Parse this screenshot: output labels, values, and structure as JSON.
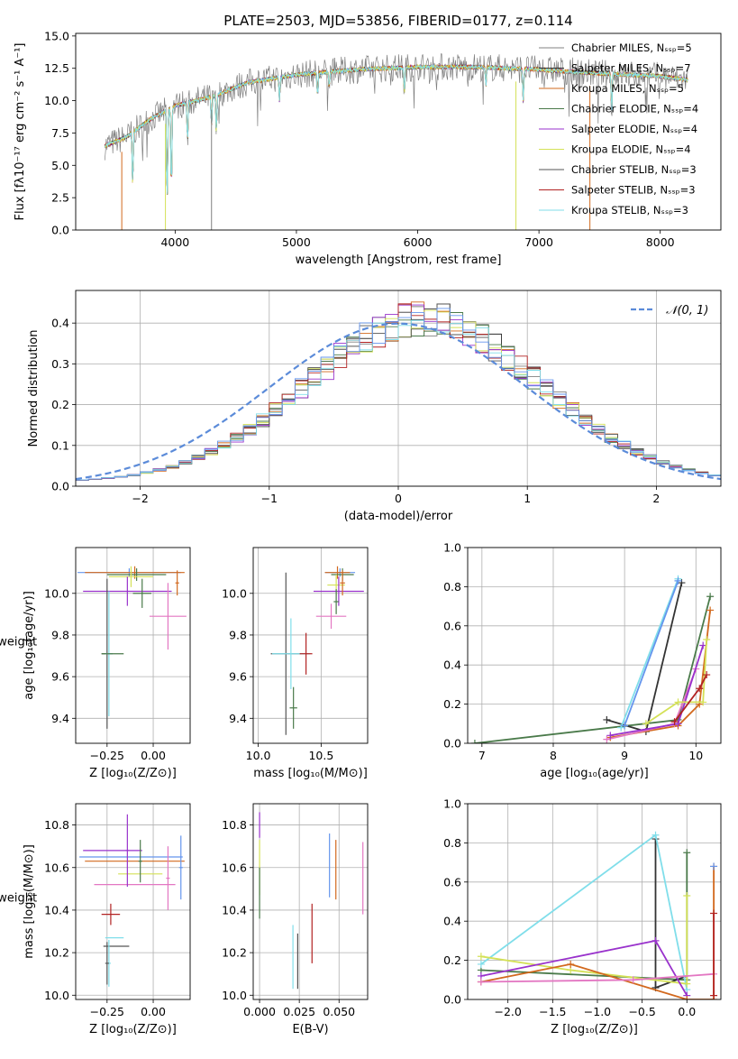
{
  "chart_data": [
    {
      "id": "spectrum",
      "type": "line",
      "title": "PLATE=2503, MJD=53856, FIBERID=0177, z=0.114",
      "xlabel": "wavelength [Angstrom, rest frame]",
      "ylabel": "Flux [fλ10⁻¹⁷ erg cm⁻² s⁻¹ A⁻¹]",
      "xlim": [
        3180,
        8500
      ],
      "ylim": [
        0,
        15.2
      ],
      "xticks": [
        "4000",
        "5000",
        "6000",
        "7000",
        "8000"
      ],
      "yticks": [
        "0.0",
        "2.5",
        "5.0",
        "7.5",
        "10.0",
        "12.5",
        "15.0"
      ],
      "legend_position": "upper-right",
      "series": [
        {
          "name": "Chabrier MILES, N_SSP=5",
          "color": "#808080"
        },
        {
          "name": "Salpeter MILES, N_SSP=7",
          "color": "#333333"
        },
        {
          "name": "Kroupa MILES, N_SSP=5",
          "color": "#d2691e"
        },
        {
          "name": "Chabrier ELODIE, N_SSP=4",
          "color": "#4a7a4a"
        },
        {
          "name": "Salpeter ELODIE, N_SSP=4",
          "color": "#9932cc"
        },
        {
          "name": "Kroupa ELODIE, N_SSP=4",
          "color": "#d4e157"
        },
        {
          "name": "Chabrier STELIB, N_SSP=3",
          "color": "#555555"
        },
        {
          "name": "Salpeter STELIB, N_SSP=3",
          "color": "#b22222"
        },
        {
          "name": "Kroupa STELIB, N_SSP=3",
          "color": "#80deea"
        }
      ],
      "continuum": [
        [
          3420,
          6.5
        ],
        [
          3600,
          7.2
        ],
        [
          3800,
          8.6
        ],
        [
          4000,
          9.6
        ],
        [
          4300,
          10.3
        ],
        [
          4600,
          11.4
        ],
        [
          5000,
          12.0
        ],
        [
          5500,
          12.4
        ],
        [
          6000,
          12.6
        ],
        [
          6500,
          12.6
        ],
        [
          7000,
          12.4
        ],
        [
          7500,
          12.1
        ],
        [
          8000,
          11.9
        ],
        [
          8230,
          11.6
        ]
      ],
      "absorption_lines": [
        [
          3650,
          4.2
        ],
        [
          3934,
          7.2
        ],
        [
          3969,
          6.6
        ],
        [
          4102,
          3.0
        ],
        [
          4300,
          2.3
        ],
        [
          4340,
          3.0
        ],
        [
          4861,
          1.8
        ],
        [
          5175,
          1.8
        ],
        [
          5270,
          1.2
        ],
        [
          5890,
          2.0
        ],
        [
          6563,
          1.4
        ],
        [
          6870,
          2.5
        ],
        [
          7600,
          3.0
        ]
      ]
    },
    {
      "id": "residuals",
      "type": "step",
      "xlabel": "(data-model)/error",
      "ylabel": "Normed distribution",
      "xlim": [
        -2.5,
        2.5
      ],
      "ylim": [
        0,
        0.48
      ],
      "xticks": [
        "−2",
        "−1",
        "0",
        "1",
        "2"
      ],
      "yticks": [
        "0.0",
        "0.1",
        "0.2",
        "0.3",
        "0.4"
      ],
      "legend": "𝒩(0, 1)",
      "normal_curve": {
        "mean": 0,
        "sigma": 1
      },
      "hist_colors": [
        "#808080",
        "#333333",
        "#d2691e",
        "#4a7a4a",
        "#9932cc",
        "#d4e157",
        "#555555",
        "#b22222",
        "#80deea",
        "#6495ed"
      ]
    },
    {
      "id": "age_vs_Z",
      "type": "errorbar",
      "xlabel": "Z [log₁₀(Z/Z⊙)]",
      "ylabel": "age  [log₁₀(age/yr)]",
      "xlim": [
        -0.42,
        0.2
      ],
      "ylim": [
        9.28,
        10.22
      ],
      "xticks": [
        "−0.25",
        "0.00"
      ],
      "yticks": [
        "9.4",
        "9.6",
        "9.8",
        "10.0"
      ],
      "points": [
        {
          "x": -0.13,
          "xe": 0.28,
          "y": 10.1,
          "ye": 0.02,
          "c": "#6495ed"
        },
        {
          "x": -0.1,
          "xe": 0.27,
          "y": 10.1,
          "ye": 0.03,
          "c": "#d2691e"
        },
        {
          "x": -0.09,
          "xe": 0.16,
          "y": 10.09,
          "ye": 0.03,
          "c": "#4a7a4a"
        },
        {
          "x": -0.12,
          "xe": 0.12,
          "y": 10.08,
          "ye": 0.05,
          "c": "#d4e157"
        },
        {
          "x": -0.14,
          "xe": 0.24,
          "y": 10.01,
          "ye": 0.07,
          "c": "#9932cc"
        },
        {
          "x": 0.13,
          "xe": 0.01,
          "y": 10.05,
          "ye": 0.06,
          "c": "#d2691e"
        },
        {
          "x": 0.08,
          "xe": 0.1,
          "y": 9.89,
          "ye": 0.16,
          "c": "#e377c2"
        },
        {
          "x": -0.06,
          "xe": 0.05,
          "y": 10.0,
          "ye": 0.07,
          "c": "#4a7a4a"
        },
        {
          "x": -0.25,
          "xe": 0.03,
          "y": 9.71,
          "ye": 0.36,
          "c": "#555555"
        },
        {
          "x": -0.24,
          "xe": 0.02,
          "y": 9.71,
          "ye": 0.3,
          "c": "#80deea"
        },
        {
          "x": -0.22,
          "xe": 0.06,
          "y": 9.71,
          "ye": 0.0,
          "c": "#4a7a4a"
        }
      ]
    },
    {
      "id": "age_vs_mass",
      "type": "errorbar",
      "xlabel": "mass [log₁₀(M/M⊙)]",
      "ylabel": "",
      "xlim": [
        9.96,
        10.87
      ],
      "ylim": [
        9.28,
        10.22
      ],
      "xticks": [
        "10.0",
        "10.5"
      ],
      "yticks": [
        "9.4",
        "9.6",
        "9.8",
        "10.0"
      ],
      "points": [
        {
          "x": 10.65,
          "xe": 0.12,
          "y": 10.1,
          "ye": 0.02,
          "c": "#6495ed"
        },
        {
          "x": 10.63,
          "xe": 0.1,
          "y": 10.1,
          "ye": 0.03,
          "c": "#d2691e"
        },
        {
          "x": 10.67,
          "xe": 0.09,
          "y": 10.09,
          "ye": 0.03,
          "c": "#4a7a4a"
        },
        {
          "x": 10.62,
          "xe": 0.07,
          "y": 10.04,
          "ye": 0.05,
          "c": "#d4e157"
        },
        {
          "x": 10.64,
          "xe": 0.2,
          "y": 10.01,
          "ye": 0.07,
          "c": "#9932cc"
        },
        {
          "x": 10.58,
          "xe": 0.12,
          "y": 9.89,
          "ye": 0.06,
          "c": "#e377c2"
        },
        {
          "x": 10.67,
          "xe": 0.02,
          "y": 10.05,
          "ye": 0.06,
          "c": "#d2691e"
        },
        {
          "x": 10.62,
          "xe": 0.02,
          "y": 9.96,
          "ye": 0.06,
          "c": "#4a7a4a"
        },
        {
          "x": 10.22,
          "xe": 0.12,
          "y": 9.71,
          "ye": 0.39,
          "c": "#555555"
        },
        {
          "x": 10.26,
          "xe": 0.15,
          "y": 9.71,
          "ye": 0.17,
          "c": "#80deea"
        },
        {
          "x": 10.38,
          "xe": 0.05,
          "y": 9.71,
          "ye": 0.1,
          "c": "#b22222"
        },
        {
          "x": 10.28,
          "xe": 0.03,
          "y": 9.45,
          "ye": 0.1,
          "c": "#4a7a4a"
        }
      ]
    },
    {
      "id": "mw_vs_age",
      "type": "line",
      "xlabel": "age  [log₁₀(age/yr)]",
      "ylabel": "mass weight",
      "xlim": [
        6.8,
        10.35
      ],
      "ylim": [
        0,
        1.0
      ],
      "xticks": [
        "7",
        "8",
        "9",
        "10"
      ],
      "yticks": [
        "0.0",
        "0.2",
        "0.4",
        "0.6",
        "0.8",
        "1.0"
      ],
      "series": [
        {
          "c": "#4a7a4a",
          "x": [
            6.9,
            9.75,
            10.2
          ],
          "y": [
            0.0,
            0.12,
            0.75
          ]
        },
        {
          "c": "#333333",
          "x": [
            8.75,
            9.3,
            9.8
          ],
          "y": [
            0.12,
            0.06,
            0.82
          ]
        },
        {
          "c": "#80deea",
          "x": [
            8.95,
            9.75
          ],
          "y": [
            0.08,
            0.84
          ]
        },
        {
          "c": "#6495ed",
          "x": [
            9.0,
            9.75
          ],
          "y": [
            0.09,
            0.83
          ]
        },
        {
          "c": "#d2691e",
          "x": [
            8.8,
            9.75,
            10.05,
            10.2
          ],
          "y": [
            0.03,
            0.09,
            0.2,
            0.68
          ]
        },
        {
          "c": "#e377c2",
          "x": [
            8.75,
            9.7,
            10.0
          ],
          "y": [
            0.02,
            0.1,
            0.38
          ]
        },
        {
          "c": "#9932cc",
          "x": [
            8.8,
            9.75,
            10.1
          ],
          "y": [
            0.04,
            0.1,
            0.5
          ]
        },
        {
          "c": "#d4e157",
          "x": [
            9.3,
            9.75,
            10.1,
            10.15
          ],
          "y": [
            0.1,
            0.21,
            0.21,
            0.53
          ]
        },
        {
          "c": "#b22222",
          "x": [
            9.7,
            10.05,
            10.15
          ],
          "y": [
            0.11,
            0.28,
            0.35
          ]
        }
      ]
    },
    {
      "id": "mass_vs_Z",
      "type": "errorbar",
      "xlabel": "Z [log₁₀(Z/Z⊙)]",
      "ylabel": "mass [log₁₀(M/M⊙)]",
      "xlim": [
        -0.42,
        0.2
      ],
      "ylim": [
        9.98,
        10.9
      ],
      "xticks": [
        "−0.25",
        "0.00"
      ],
      "yticks": [
        "10.0",
        "10.2",
        "10.4",
        "10.6",
        "10.8"
      ],
      "points": [
        {
          "x": -0.22,
          "xe": 0.16,
          "y": 10.68,
          "ye": 0.0,
          "c": "#9932cc"
        },
        {
          "x": -0.12,
          "xe": 0.28,
          "y": 10.65,
          "ye": 0.0,
          "c": "#6495ed"
        },
        {
          "x": -0.1,
          "xe": 0.27,
          "y": 10.63,
          "ye": 0.0,
          "c": "#d2691e"
        },
        {
          "x": -0.07,
          "xe": 0.12,
          "y": 10.57,
          "ye": 0.0,
          "c": "#d4e157"
        },
        {
          "x": -0.1,
          "xe": 0.22,
          "y": 10.52,
          "ye": 0.0,
          "c": "#e377c2"
        },
        {
          "x": -0.14,
          "xe": 0.01,
          "y": 10.68,
          "ye": 0.17,
          "c": "#9932cc"
        },
        {
          "x": -0.07,
          "xe": 0.01,
          "y": 10.63,
          "ye": 0.1,
          "c": "#4a7a4a"
        },
        {
          "x": 0.15,
          "xe": 0.01,
          "y": 10.6,
          "ye": 0.15,
          "c": "#6495ed"
        },
        {
          "x": 0.08,
          "xe": 0.01,
          "y": 10.55,
          "ye": 0.15,
          "c": "#e377c2"
        },
        {
          "x": -0.23,
          "xe": 0.05,
          "y": 10.38,
          "ye": 0.05,
          "c": "#b22222"
        },
        {
          "x": -0.2,
          "xe": 0.07,
          "y": 10.23,
          "ye": 0.0,
          "c": "#555555"
        },
        {
          "x": -0.21,
          "xe": 0.05,
          "y": 10.27,
          "ye": 0.0,
          "c": "#80deea"
        },
        {
          "x": -0.24,
          "xe": 0.01,
          "y": 10.15,
          "ye": 0.11,
          "c": "#80deea"
        },
        {
          "x": -0.25,
          "xe": 0.01,
          "y": 10.15,
          "ye": 0.1,
          "c": "#555555"
        }
      ]
    },
    {
      "id": "mass_vs_EBV",
      "type": "errorbar",
      "xlabel": "E(B-V)",
      "ylabel": "",
      "xlim": [
        -0.004,
        0.068
      ],
      "ylim": [
        9.98,
        10.9
      ],
      "xticks": [
        "0.000",
        "0.025",
        "0.050"
      ],
      "yticks": [
        "10.0",
        "10.2",
        "10.4",
        "10.6",
        "10.8"
      ],
      "points": [
        {
          "x": 0.0,
          "y": 10.8,
          "ye": 0.06,
          "c": "#9932cc"
        },
        {
          "x": 0.0,
          "y": 10.6,
          "ye": 0.13,
          "c": "#d4e157"
        },
        {
          "x": 0.0,
          "y": 10.48,
          "ye": 0.12,
          "c": "#4a7a4a"
        },
        {
          "x": 0.021,
          "y": 10.18,
          "ye": 0.15,
          "c": "#80deea"
        },
        {
          "x": 0.024,
          "y": 10.16,
          "ye": 0.13,
          "c": "#555555"
        },
        {
          "x": 0.033,
          "y": 10.29,
          "ye": 0.14,
          "c": "#b22222"
        },
        {
          "x": 0.044,
          "y": 10.61,
          "ye": 0.15,
          "c": "#6495ed"
        },
        {
          "x": 0.048,
          "y": 10.59,
          "ye": 0.14,
          "c": "#d2691e"
        },
        {
          "x": 0.065,
          "y": 10.55,
          "ye": 0.17,
          "c": "#e377c2"
        }
      ]
    },
    {
      "id": "mw_vs_Z",
      "type": "line",
      "xlabel": "Z [log₁₀(Z/Z⊙)]",
      "ylabel": "mass weight",
      "xlim": [
        -2.45,
        0.38
      ],
      "ylim": [
        0,
        1.0
      ],
      "xticks": [
        "−2.0",
        "−1.5",
        "−1.0",
        "−0.5",
        "0.0"
      ],
      "yticks": [
        "0.0",
        "0.2",
        "0.4",
        "0.6",
        "0.8",
        "1.0"
      ],
      "series": [
        {
          "c": "#4a7a4a",
          "x": [
            -2.3,
            0.0,
            0.0
          ],
          "y": [
            0.15,
            0.1,
            0.75
          ]
        },
        {
          "c": "#333333",
          "x": [
            -0.35,
            -0.35,
            0.0
          ],
          "y": [
            0.82,
            0.06,
            0.12
          ]
        },
        {
          "c": "#80deea",
          "x": [
            -2.3,
            -0.35,
            0.0
          ],
          "y": [
            0.18,
            0.84,
            0.05
          ]
        },
        {
          "c": "#d4e157",
          "x": [
            -2.3,
            -1.3,
            0.0,
            0.0
          ],
          "y": [
            0.22,
            0.15,
            0.08,
            0.53
          ]
        },
        {
          "c": "#9932cc",
          "x": [
            -2.3,
            -0.35,
            0.0
          ],
          "y": [
            0.12,
            0.3,
            0.02
          ]
        },
        {
          "c": "#d2691e",
          "x": [
            -2.3,
            -1.3,
            0.0,
            0.3,
            0.3
          ],
          "y": [
            0.09,
            0.18,
            0.0,
            0.0,
            0.68
          ]
        },
        {
          "c": "#e377c2",
          "x": [
            -2.3,
            -0.6,
            0.3
          ],
          "y": [
            0.09,
            0.1,
            0.13
          ]
        },
        {
          "c": "#b22222",
          "x": [
            0.3,
            0.3
          ],
          "y": [
            0.02,
            0.44
          ]
        },
        {
          "c": "#6495ed",
          "x": [
            0.3
          ],
          "y": [
            0.68
          ]
        }
      ]
    }
  ]
}
